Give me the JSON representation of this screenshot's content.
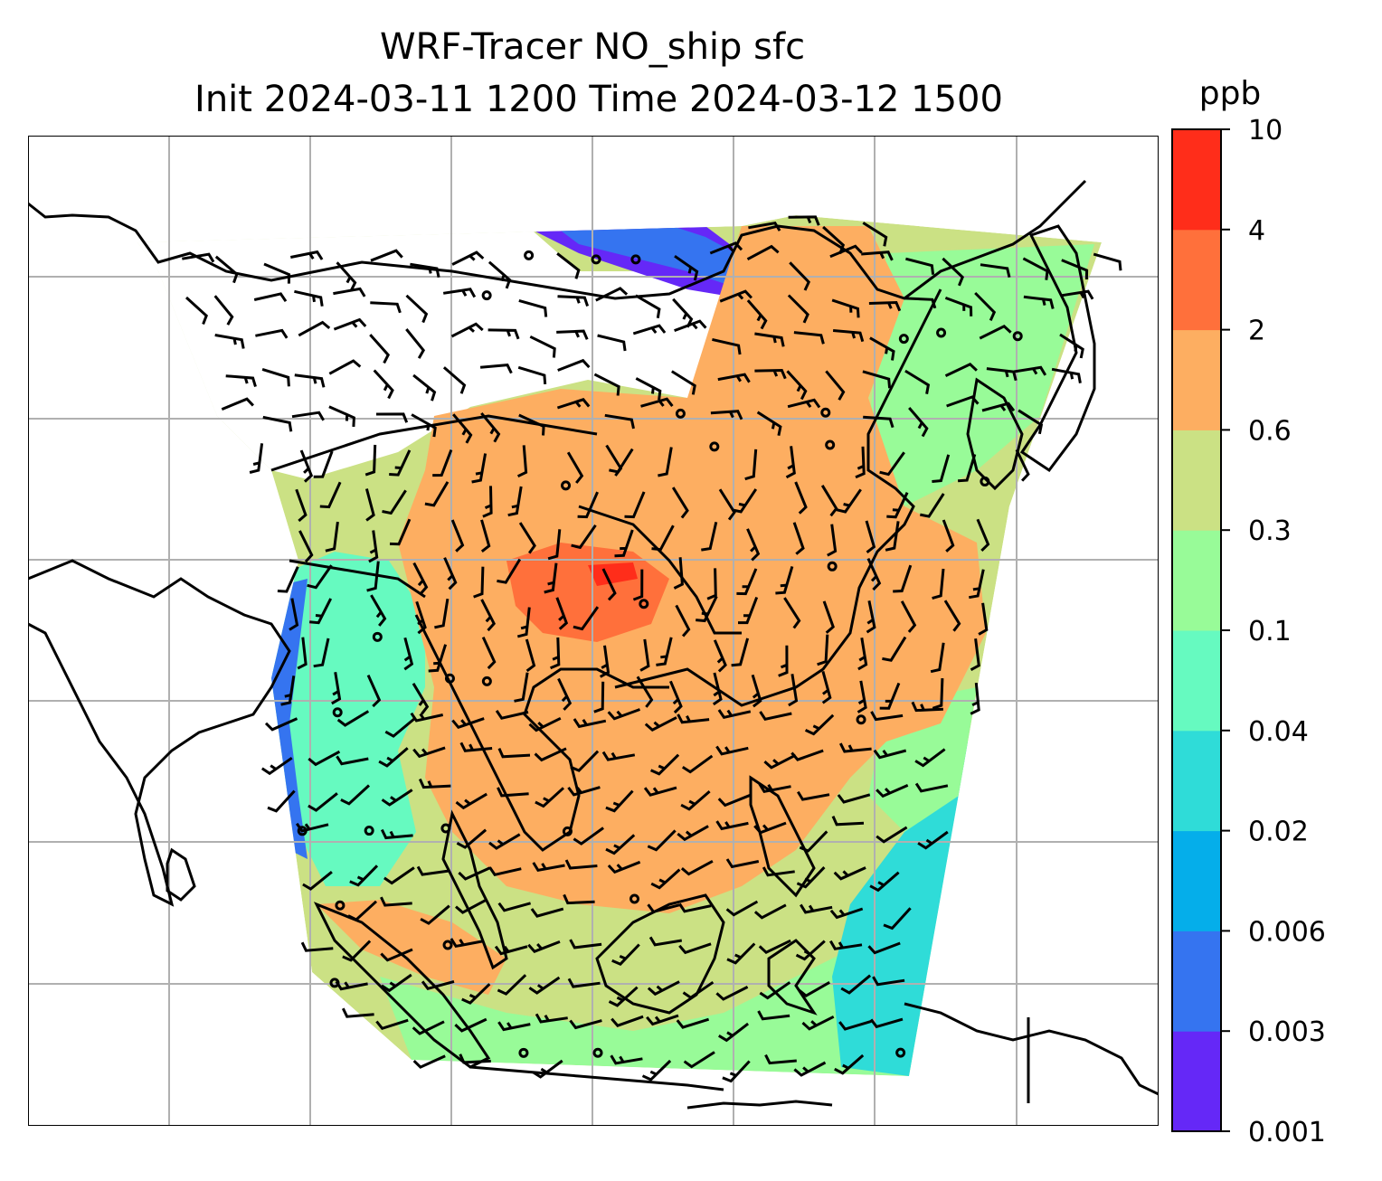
{
  "title": {
    "line1": "WRF-Tracer NO_ship sfc",
    "line2": "Init 2024-03-11 1200 Time 2024-03-12 1500"
  },
  "colorbar": {
    "unit": "ppb",
    "levels": [
      "0.001",
      "0.003",
      "0.006",
      "0.02",
      "0.04",
      "0.1",
      "0.3",
      "0.6",
      "2",
      "4",
      "10"
    ],
    "colors": [
      "#6528f7",
      "#3574f0",
      "#05aeea",
      "#2fdcd8",
      "#66fac0",
      "#98fb98",
      "#cbe184",
      "#fdae61",
      "#ff703b",
      "#ff2d1a"
    ]
  },
  "map": {
    "gridlines": "on",
    "ocean_color": "#ffffff",
    "coastline_color": "#000000",
    "grid_color": "#b0b0b0"
  }
}
